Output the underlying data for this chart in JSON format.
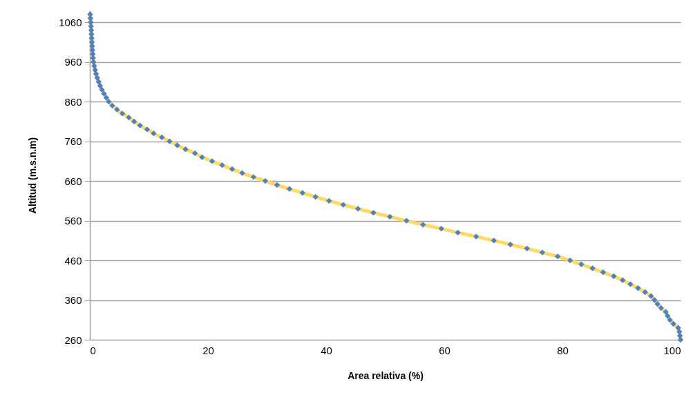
{
  "chart_data": {
    "type": "line",
    "xlabel": "Area relativa (%)",
    "ylabel": "Altitud (m.s.n.m)",
    "x": [
      0.05,
      0.1,
      0.15,
      0.2,
      0.25,
      0.28,
      0.32,
      0.36,
      0.4,
      0.45,
      0.5,
      0.55,
      0.62,
      0.75,
      0.9,
      1.05,
      1.25,
      1.5,
      1.75,
      2.05,
      2.4,
      2.8,
      3.2,
      3.8,
      4.6,
      5.5,
      6.6,
      7.5,
      8.5,
      9.7,
      10.8,
      12.2,
      13.5,
      14.8,
      16.2,
      17.8,
      19.0,
      20.7,
      22.4,
      24.1,
      25.8,
      27.7,
      29.7,
      31.7,
      33.8,
      36.0,
      38.2,
      40.5,
      42.9,
      45.4,
      48.0,
      50.8,
      53.6,
      56.4,
      59.5,
      62.3,
      65.4,
      68.4,
      71.2,
      74.0,
      76.6,
      79.2,
      81.3,
      83.2,
      85.1,
      86.9,
      88.7,
      90.2,
      91.5,
      92.8,
      94.0,
      95.0,
      95.6,
      96.1,
      96.7,
      97.5,
      97.8,
      98.2,
      98.8,
      99.6,
      99.8,
      99.9,
      100
    ],
    "series": [
      {
        "type": "line",
        "color": "#ffd966",
        "values": [
          1080,
          1070,
          1060,
          1050,
          1040,
          1030,
          1020,
          1010,
          1000,
          990,
          980,
          970,
          960,
          950,
          940,
          930,
          920,
          910,
          900,
          890,
          880,
          870,
          860,
          850,
          840,
          830,
          820,
          810,
          800,
          790,
          780,
          770,
          760,
          750,
          740,
          730,
          720,
          710,
          700,
          690,
          680,
          670,
          660,
          650,
          640,
          630,
          620,
          610,
          600,
          590,
          580,
          570,
          560,
          550,
          540,
          530,
          520,
          510,
          500,
          490,
          480,
          470,
          460,
          450,
          440,
          430,
          420,
          410,
          400,
          390,
          380,
          370,
          360,
          350,
          340,
          330,
          320,
          310,
          300,
          290,
          280,
          270,
          260
        ]
      },
      {
        "type": "scatter",
        "color": "#4f81bd",
        "marker": "diamond",
        "values": [
          1080,
          1070,
          1060,
          1050,
          1040,
          1030,
          1020,
          1010,
          1000,
          990,
          980,
          970,
          960,
          950,
          940,
          930,
          920,
          910,
          900,
          890,
          880,
          870,
          860,
          850,
          840,
          830,
          820,
          810,
          800,
          790,
          780,
          770,
          760,
          750,
          740,
          730,
          720,
          710,
          700,
          690,
          680,
          670,
          660,
          650,
          640,
          630,
          620,
          610,
          600,
          590,
          580,
          570,
          560,
          550,
          540,
          530,
          520,
          510,
          500,
          490,
          480,
          470,
          460,
          450,
          440,
          430,
          420,
          410,
          400,
          390,
          380,
          370,
          360,
          350,
          340,
          330,
          320,
          310,
          300,
          290,
          280,
          270,
          260
        ]
      }
    ],
    "xlim": [
      0,
      100
    ],
    "xticks": [
      0,
      20,
      40,
      60,
      80,
      100
    ],
    "ylim": [
      260,
      1090
    ],
    "yticks": [
      260,
      360,
      460,
      560,
      660,
      760,
      860,
      960,
      1060
    ],
    "grid": "y"
  }
}
